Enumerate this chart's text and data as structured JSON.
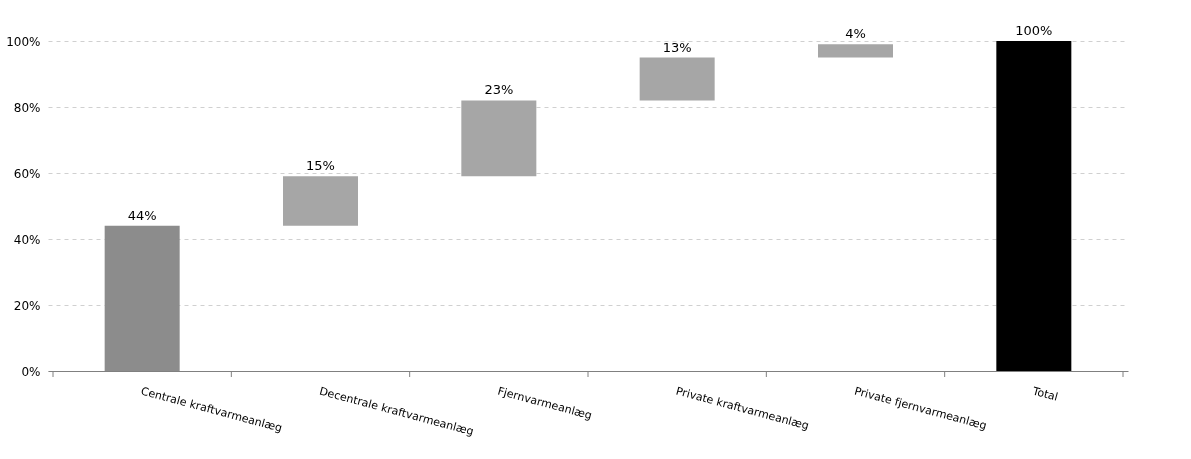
{
  "chart_data": {
    "type": "bar",
    "categories": [
      "Centrale kraftvarmeanlæg",
      "Decentrale kraftvarmeanlæg",
      "Fjernvarmeanlæg",
      "Private kraftvarmeanlæg",
      "Private fjernvarmeanlæg",
      "Total"
    ],
    "values": [
      44,
      15,
      23,
      13,
      4,
      100
    ],
    "base": [
      0,
      44,
      59,
      82,
      95,
      0
    ],
    "colors": [
      "#8c8c8c",
      "#a6a6a6",
      "#a6a6a6",
      "#a6a6a6",
      "#a6a6a6",
      "#000000"
    ],
    "value_labels": [
      "44%",
      "15%",
      "23%",
      "13%",
      "4%",
      "100%"
    ],
    "ylim": [
      0,
      100
    ],
    "yticks": [
      {
        "value": 0,
        "label": "0%"
      },
      {
        "value": 20,
        "label": "20%"
      },
      {
        "value": 40,
        "label": "40%"
      },
      {
        "value": 60,
        "label": "60%"
      },
      {
        "value": 80,
        "label": "80%"
      },
      {
        "value": 100,
        "label": "100%"
      }
    ],
    "grid": "y"
  }
}
